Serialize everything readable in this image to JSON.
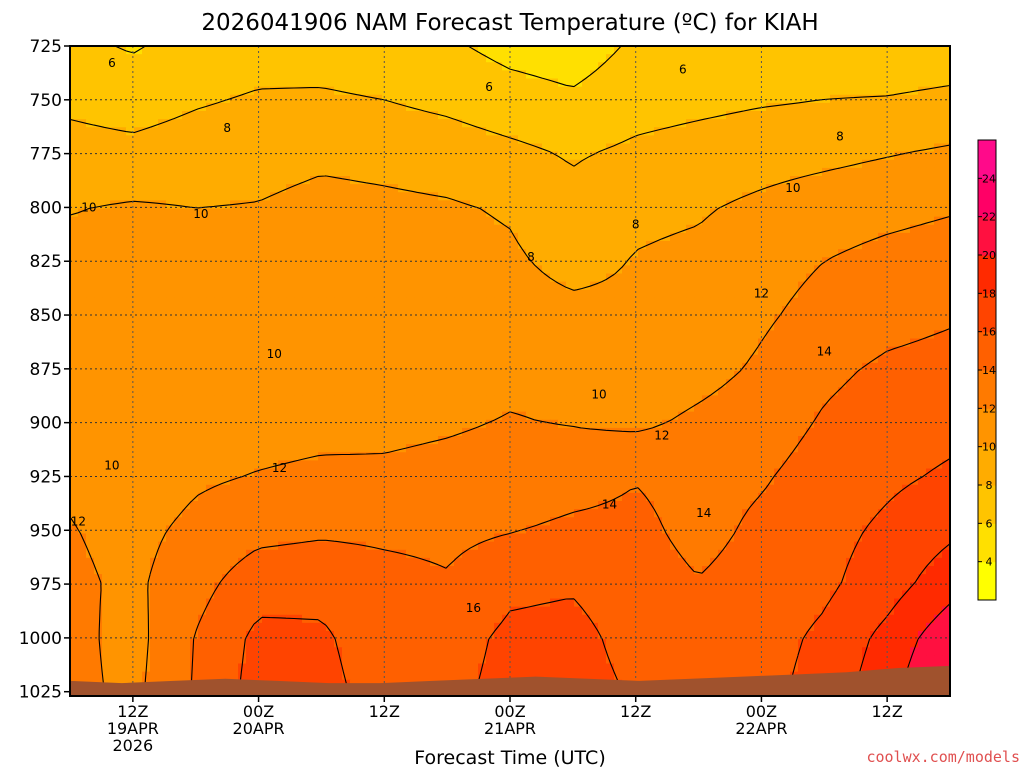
{
  "chart_data": {
    "type": "heatmap",
    "title": "2026041906 NAM Forecast Temperature (ºC) for KIAH",
    "xlabel": "Forecast Time (UTC)",
    "ylabel": "",
    "x_ticks": [
      {
        "line1": "12Z",
        "line2": "19APR",
        "line3": "2026"
      },
      {
        "line1": "00Z",
        "line2": "20APR",
        "line3": ""
      },
      {
        "line1": "12Z",
        "line2": "",
        "line3": ""
      },
      {
        "line1": "00Z",
        "line2": "21APR",
        "line3": ""
      },
      {
        "line1": "12Z",
        "line2": "",
        "line3": ""
      },
      {
        "line1": "00Z",
        "line2": "22APR",
        "line3": ""
      },
      {
        "line1": "12Z",
        "line2": "",
        "line3": ""
      }
    ],
    "x_tick_hours": [
      6,
      18,
      30,
      42,
      54,
      66,
      78
    ],
    "x_range_hours": [
      0,
      84
    ],
    "y_ticks": [
      725,
      750,
      775,
      800,
      825,
      850,
      875,
      900,
      925,
      950,
      975,
      1000,
      1025
    ],
    "y_range": [
      725,
      1027
    ],
    "grid": true,
    "colorbar_ticks": [
      4,
      6,
      8,
      10,
      12,
      14,
      16,
      18,
      20,
      22,
      24
    ],
    "colorbar_range": [
      2,
      26
    ],
    "colors": [
      "#ffff00",
      "#ffe000",
      "#ffc400",
      "#ffac00",
      "#ff9400",
      "#ff7a00",
      "#ff6000",
      "#ff4400",
      "#ff2a00",
      "#ff1040",
      "#ff0066",
      "#ff0a8a"
    ],
    "ground_color": "#a0522d",
    "surface_pressure": [
      1020,
      1021,
      1020,
      1019,
      1020,
      1021,
      1021,
      1020,
      1019,
      1018,
      1019,
      1020,
      1019,
      1018,
      1017,
      1016,
      1014,
      1013
    ],
    "field": {
      "hours": [
        0,
        6,
        12,
        18,
        24,
        30,
        36,
        42,
        48,
        54,
        60,
        66,
        72,
        78,
        84
      ],
      "levels": [
        725,
        750,
        775,
        800,
        825,
        850,
        875,
        900,
        925,
        950,
        975,
        1000,
        1025
      ],
      "values": [
        [
          6.5,
          5.8,
          6.8,
          7.2,
          7.0,
          6.6,
          6.3,
          5.4,
          5.0,
          6.3,
          6.4,
          6.6,
          6.8,
          6.7,
          6.9
        ],
        [
          7.6,
          7.2,
          7.8,
          8.2,
          8.3,
          8.0,
          7.5,
          6.8,
          6.3,
          7.2,
          7.5,
          7.8,
          8.0,
          8.1,
          8.4
        ],
        [
          8.7,
          8.5,
          8.9,
          9.2,
          9.6,
          9.4,
          9.1,
          8.5,
          7.8,
          8.4,
          8.8,
          9.2,
          9.5,
          9.9,
          10.3
        ],
        [
          9.9,
          10.2,
          10.0,
          10.1,
          10.6,
          10.4,
          10.2,
          9.8,
          8.6,
          9.6,
          9.8,
          10.4,
          11.0,
          11.4,
          11.8
        ],
        [
          10.6,
          10.3,
          10.4,
          10.6,
          10.9,
          10.8,
          10.7,
          10.3,
          9.4,
          10.1,
          10.4,
          11.2,
          12.0,
          12.6,
          13.0
        ],
        [
          10.8,
          10.2,
          10.3,
          10.5,
          10.1,
          10.8,
          10.9,
          10.8,
          10.5,
          10.4,
          10.7,
          11.7,
          12.7,
          13.4,
          13.8
        ],
        [
          10.7,
          10.4,
          10.7,
          10.6,
          10.0,
          11.0,
          11.2,
          11.6,
          11.6,
          10.6,
          11.3,
          12.3,
          13.6,
          14.3,
          14.6
        ],
        [
          11.4,
          10.6,
          11.3,
          11.2,
          11.4,
          11.6,
          11.8,
          12.1,
          11.9,
          11.6,
          12.4,
          13.1,
          14.2,
          14.9,
          15.4
        ],
        [
          11.7,
          10.8,
          11.7,
          12.1,
          12.4,
          12.3,
          12.5,
          12.7,
          13.2,
          13.9,
          13.3,
          13.8,
          14.8,
          15.6,
          16.3
        ],
        [
          12.1,
          11.4,
          12.5,
          13.4,
          13.7,
          13.6,
          13.5,
          13.9,
          14.4,
          14.5,
          13.4,
          14.4,
          15.3,
          16.4,
          17.6
        ],
        [
          12.4,
          11.6,
          13.3,
          15.2,
          15.4,
          14.7,
          14.2,
          15.6,
          15.8,
          14.9,
          14.1,
          14.8,
          15.6,
          17.1,
          19.2
        ],
        [
          12.6,
          11.3,
          14.1,
          16.5,
          16.3,
          14.9,
          15.2,
          16.4,
          16.6,
          15.3,
          14.7,
          15.2,
          16.4,
          18.6,
          21.4
        ],
        [
          12.6,
          11.5,
          14.2,
          16.8,
          16.6,
          15.2,
          15.5,
          16.6,
          16.8,
          15.8,
          15.1,
          15.4,
          16.8,
          19.3,
          22.6
        ]
      ]
    },
    "contour_labels": [
      {
        "text": "6",
        "x_hour": 4.0,
        "level": 733
      },
      {
        "text": "6",
        "x_hour": 40.0,
        "level": 744
      },
      {
        "text": "6",
        "x_hour": 58.5,
        "level": 736
      },
      {
        "text": "8",
        "x_hour": 15.0,
        "level": 763
      },
      {
        "text": "8",
        "x_hour": 44.0,
        "level": 823
      },
      {
        "text": "8",
        "x_hour": 54.0,
        "level": 808
      },
      {
        "text": "8",
        "x_hour": 73.5,
        "level": 767
      },
      {
        "text": "10",
        "x_hour": 1.8,
        "level": 800
      },
      {
        "text": "10",
        "x_hour": 12.5,
        "level": 803
      },
      {
        "text": "10",
        "x_hour": 19.5,
        "level": 868
      },
      {
        "text": "10",
        "x_hour": 4.0,
        "level": 920
      },
      {
        "text": "10",
        "x_hour": 50.5,
        "level": 887
      },
      {
        "text": "10",
        "x_hour": 69.0,
        "level": 791
      },
      {
        "text": "12",
        "x_hour": 0.8,
        "level": 946
      },
      {
        "text": "12",
        "x_hour": 20.0,
        "level": 921
      },
      {
        "text": "12",
        "x_hour": 56.5,
        "level": 906
      },
      {
        "text": "12",
        "x_hour": 66.0,
        "level": 840
      },
      {
        "text": "14",
        "x_hour": 51.5,
        "level": 938
      },
      {
        "text": "14",
        "x_hour": 60.5,
        "level": 942
      },
      {
        "text": "14",
        "x_hour": 72.0,
        "level": 867
      },
      {
        "text": "16",
        "x_hour": 38.5,
        "level": 986
      }
    ],
    "credit": "coolwx.com/models"
  }
}
